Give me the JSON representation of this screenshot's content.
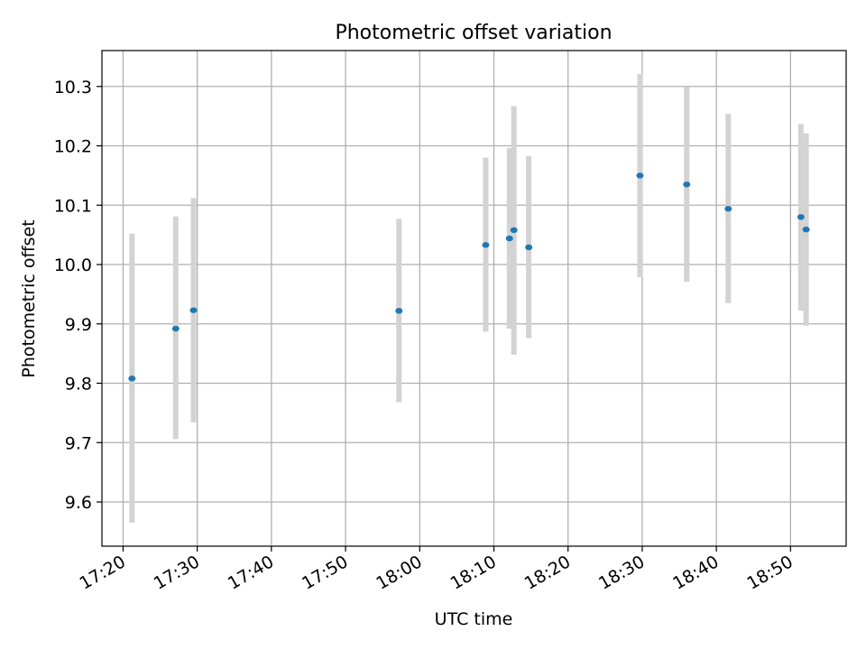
{
  "chart_data": {
    "type": "scatter",
    "title": "Photometric offset variation",
    "xlabel": "UTC time",
    "ylabel": "Photometric offset",
    "grid": true,
    "legend": "none",
    "colors": {
      "marker": "#1f77b4",
      "errorbar": "#d3d3d3",
      "grid": "#b0b0b0"
    },
    "xlim_minutes": [
      1037.15,
      1137.5
    ],
    "ylim": [
      9.5255,
      10.3605
    ],
    "xticks": [
      {
        "minutes": 1040,
        "label": "17:20"
      },
      {
        "minutes": 1050,
        "label": "17:30"
      },
      {
        "minutes": 1060,
        "label": "17:40"
      },
      {
        "minutes": 1070,
        "label": "17:50"
      },
      {
        "minutes": 1080,
        "label": "18:00"
      },
      {
        "minutes": 1090,
        "label": "18:10"
      },
      {
        "minutes": 1100,
        "label": "18:20"
      },
      {
        "minutes": 1110,
        "label": "18:30"
      },
      {
        "minutes": 1120,
        "label": "18:40"
      },
      {
        "minutes": 1130,
        "label": "18:50"
      }
    ],
    "yticks": [
      {
        "value": 9.6,
        "label": "9.6"
      },
      {
        "value": 9.7,
        "label": "9.7"
      },
      {
        "value": 9.8,
        "label": "9.8"
      },
      {
        "value": 9.9,
        "label": "9.9"
      },
      {
        "value": 10.0,
        "label": "10.0"
      },
      {
        "value": 10.1,
        "label": "10.1"
      },
      {
        "value": 10.2,
        "label": "10.2"
      },
      {
        "value": 10.3,
        "label": "10.3"
      }
    ],
    "points": [
      {
        "minutes": 1041.2,
        "y": 9.808,
        "err_low": 9.565,
        "err_high": 10.052
      },
      {
        "minutes": 1047.1,
        "y": 9.892,
        "err_low": 9.706,
        "err_high": 10.081
      },
      {
        "minutes": 1049.5,
        "y": 9.923,
        "err_low": 9.734,
        "err_high": 10.112
      },
      {
        "minutes": 1077.2,
        "y": 9.922,
        "err_low": 9.768,
        "err_high": 10.077
      },
      {
        "minutes": 1088.9,
        "y": 10.033,
        "err_low": 9.887,
        "err_high": 10.18
      },
      {
        "minutes": 1092.1,
        "y": 10.044,
        "err_low": 9.892,
        "err_high": 10.196
      },
      {
        "minutes": 1092.7,
        "y": 10.058,
        "err_low": 9.848,
        "err_high": 10.267
      },
      {
        "minutes": 1094.7,
        "y": 10.029,
        "err_low": 9.876,
        "err_high": 10.183
      },
      {
        "minutes": 1109.7,
        "y": 10.15,
        "err_low": 9.979,
        "err_high": 10.321
      },
      {
        "minutes": 1116.0,
        "y": 10.135,
        "err_low": 9.971,
        "err_high": 10.299
      },
      {
        "minutes": 1121.6,
        "y": 10.094,
        "err_low": 9.935,
        "err_high": 10.254
      },
      {
        "minutes": 1131.4,
        "y": 10.08,
        "err_low": 9.922,
        "err_high": 10.237
      },
      {
        "minutes": 1132.1,
        "y": 10.059,
        "err_low": 9.897,
        "err_high": 10.221
      }
    ]
  }
}
